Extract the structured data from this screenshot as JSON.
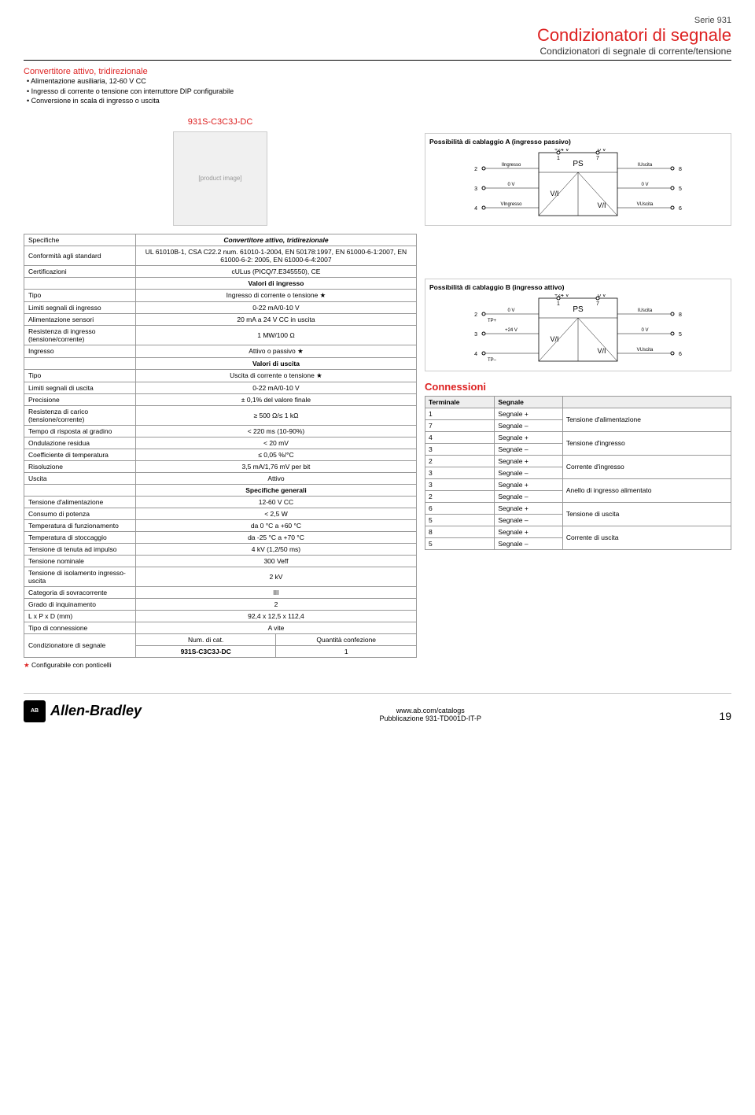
{
  "header": {
    "serie": "Serie 931",
    "title": "Condizionatori di segnale",
    "subtitle": "Condizionatori di segnale di corrente/tensione"
  },
  "intro": {
    "title": "Convertitore attivo, tridirezionale",
    "bullets": [
      "Alimentazione ausiliaria, 12-60 V CC",
      "Ingresso di corrente o tensione con interruttore DIP configurabile",
      "Conversione in scala di ingresso o uscita"
    ]
  },
  "model": "931S-C3C3J-DC",
  "diagA_title": "Possibilità di cablaggio A (ingresso passivo)",
  "diagB_title": "Possibilità di cablaggio B (ingresso attivo)",
  "diag": {
    "labels": {
      "plus24": "+24 V",
      "zero": "0 V",
      "ps": "PS",
      "vi": "V/I",
      "iin": "IIngresso",
      "vin": "VIngresso",
      "iout": "IUscita",
      "vout": "VUscita",
      "tpp": "TP+",
      "tpm": "TP–"
    },
    "pins": {
      "1": "1",
      "2": "2",
      "3": "3",
      "4": "4",
      "5": "5",
      "6": "6",
      "7": "7",
      "8": "8"
    }
  },
  "spec": {
    "h1": "Specifiche",
    "h1v": "Convertitore attivo, tridirezionale",
    "conf": "Conformità agli standard",
    "conf_v": "UL 61010B-1, CSA C22.2 num. 61010-1-2004, EN 50178:1997, EN 61000-6-1:2007, EN 61000-6-2: 2005, EN 61000-6-4:2007",
    "cert": "Certificazioni",
    "cert_v": "cULus (PICQ/7.E345550), CE",
    "vin": "Valori di ingresso",
    "tipo": "Tipo",
    "tipo_in": "Ingresso di corrente o tensione ★",
    "lim_in": "Limiti segnali di ingresso",
    "lim_in_v": "0-22 mA/0-10 V",
    "alim": "Alimentazione sensori",
    "alim_v": "20 mA a 24 V CC in uscita",
    "res_in": "Resistenza di ingresso (tensione/corrente)",
    "res_in_v": "1 MW/100 Ω",
    "ingr": "Ingresso",
    "ingr_v": "Attivo o passivo ★",
    "vout": "Valori di uscita",
    "tipo_out": "Uscita di corrente o tensione ★",
    "lim_out": "Limiti segnali di uscita",
    "lim_out_v": "0-22 mA/0-10 V",
    "prec": "Precisione",
    "prec_v": "± 0,1% del valore finale",
    "res_out": "Resistenza di carico (tensione/corrente)",
    "res_out_v": "≥ 500 Ω/≤ 1 kΩ",
    "temp_risp": "Tempo di risposta al gradino",
    "temp_risp_v": "< 220 ms (10-90%)",
    "ond": "Ondulazione residua",
    "ond_v": "< 20 mV",
    "coef": "Coefficiente di temperatura",
    "coef_v": "≤ 0,05 %/°C",
    "ris": "Risoluzione",
    "ris_v": "3,5 mA/1,76 mV per bit",
    "usc": "Uscita",
    "usc_v": "Attivo",
    "gen": "Specifiche generali",
    "tens_al": "Tensione d'alimentazione",
    "tens_al_v": "12-60 V CC",
    "cons": "Consumo di potenza",
    "cons_v": "< 2,5 W",
    "tfun": "Temperatura di funzionamento",
    "tfun_v": "da 0 °C a +60 °C",
    "tsto": "Temperatura di stoccaggio",
    "tsto_v": "da -25 °C a +70 °C",
    "timp": "Tensione di tenuta ad impulso",
    "timp_v": "4 kV (1,2/50 ms)",
    "tnom": "Tensione nominale",
    "tnom_v": "300 Veff",
    "tiso": "Tensione di isolamento ingresso-uscita",
    "tiso_v": "2 kV",
    "cat": "Categoria di sovracorrente",
    "cat_v": "III",
    "grado": "Grado di inquinamento",
    "grado_v": "2",
    "dim": "L x P x D (mm)",
    "dim_v": "92,4 x 12,5 x 112,4",
    "tconn": "Tipo di connessione",
    "tconn_v": "A vite",
    "csig": "Condizionatore di segnale",
    "numcat": "Num. di cat.",
    "qty": "Quantità confezione",
    "cat_code": "931S-C3C3J-DC",
    "qty_v": "1"
  },
  "note": "★ Configurabile con ponticelli",
  "conn": {
    "title": "Connessioni",
    "h1": "Terminale",
    "h2": "Segnale",
    "h3": "",
    "rows": [
      {
        "t": "1",
        "s": "Segnale +",
        "d": "Tensione d'alimentazione",
        "rs": 2
      },
      {
        "t": "7",
        "s": "Segnale –"
      },
      {
        "t": "4",
        "s": "Segnale +",
        "d": "Tensione d'ingresso",
        "rs": 2
      },
      {
        "t": "3",
        "s": "Segnale –"
      },
      {
        "t": "2",
        "s": "Segnale +",
        "d": "Corrente d'ingresso",
        "rs": 2
      },
      {
        "t": "3",
        "s": "Segnale –"
      },
      {
        "t": "3",
        "s": "Segnale +",
        "d": "Anello di ingresso alimentato",
        "rs": 2
      },
      {
        "t": "2",
        "s": "Segnale –"
      },
      {
        "t": "6",
        "s": "Segnale +",
        "d": "Tensione di uscita",
        "rs": 2
      },
      {
        "t": "5",
        "s": "Segnale –"
      },
      {
        "t": "8",
        "s": "Segnale +",
        "d": "Corrente di uscita",
        "rs": 2
      },
      {
        "t": "5",
        "s": "Segnale –"
      }
    ]
  },
  "footer": {
    "logo": "Allen-Bradley",
    "url": "www.ab.com/catalogs",
    "pub": "Pubblicazione 931-TD001D-IT-P",
    "page": "19"
  },
  "colors": {
    "red": "#d22",
    "gray": "#999"
  }
}
